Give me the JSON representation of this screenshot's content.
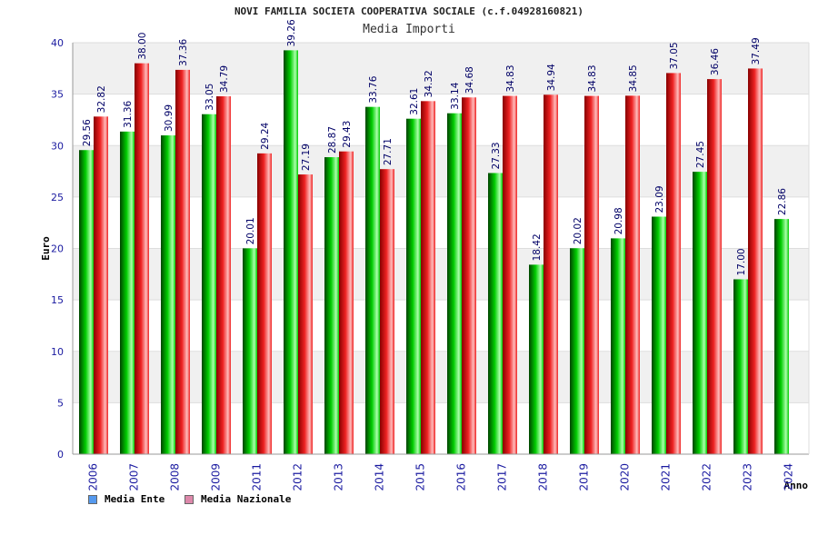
{
  "chart_data": {
    "type": "bar",
    "title": "NOVI FAMILIA SOCIETA COOPERATIVA SOCIALE (c.f.04928160821)",
    "subtitle": "Media Importi",
    "ylabel": "Euro",
    "xlabel": "Anno",
    "ylim": [
      0,
      40
    ],
    "yticks": [
      0,
      5,
      10,
      15,
      20,
      25,
      30,
      35,
      40
    ],
    "grid": true,
    "legend_position": "bottom-left",
    "categories": [
      "2006",
      "2007",
      "2008",
      "2009",
      "2011",
      "2012",
      "2013",
      "2014",
      "2015",
      "2016",
      "2017",
      "2018",
      "2019",
      "2020",
      "2021",
      "2022",
      "2023",
      "2024"
    ],
    "series": [
      {
        "name": "Media Ente",
        "color": "#00cc00",
        "legend_color": "#5599ee",
        "values": [
          29.56,
          31.36,
          30.99,
          33.05,
          20.01,
          39.26,
          28.87,
          33.76,
          32.61,
          33.14,
          27.33,
          18.42,
          20.02,
          20.98,
          23.09,
          27.45,
          17.0,
          22.86
        ],
        "labels": [
          "29.56",
          "31.36",
          "30.99",
          "33.05",
          "20.01",
          "39.26",
          "28.87",
          "33.76",
          "32.61",
          "33.14",
          "27.33",
          "18.42",
          "20.02",
          "20.98",
          "23.09",
          "27.45",
          "17.00",
          "22.86"
        ]
      },
      {
        "name": "Media Nazionale",
        "color": "#ee2222",
        "legend_color": "#dd88aa",
        "values": [
          32.82,
          38.0,
          37.36,
          34.79,
          29.24,
          27.19,
          29.43,
          27.71,
          34.32,
          34.68,
          34.83,
          34.94,
          34.83,
          34.85,
          37.05,
          36.46,
          37.49,
          null
        ],
        "labels": [
          "32.82",
          "38.00",
          "37.36",
          "34.79",
          "29.24",
          "27.19",
          "29.43",
          "27.71",
          "34.32",
          "34.68",
          "34.83",
          "34.94",
          "34.83",
          "34.85",
          "37.05",
          "36.46",
          "37.49",
          ""
        ]
      }
    ]
  }
}
